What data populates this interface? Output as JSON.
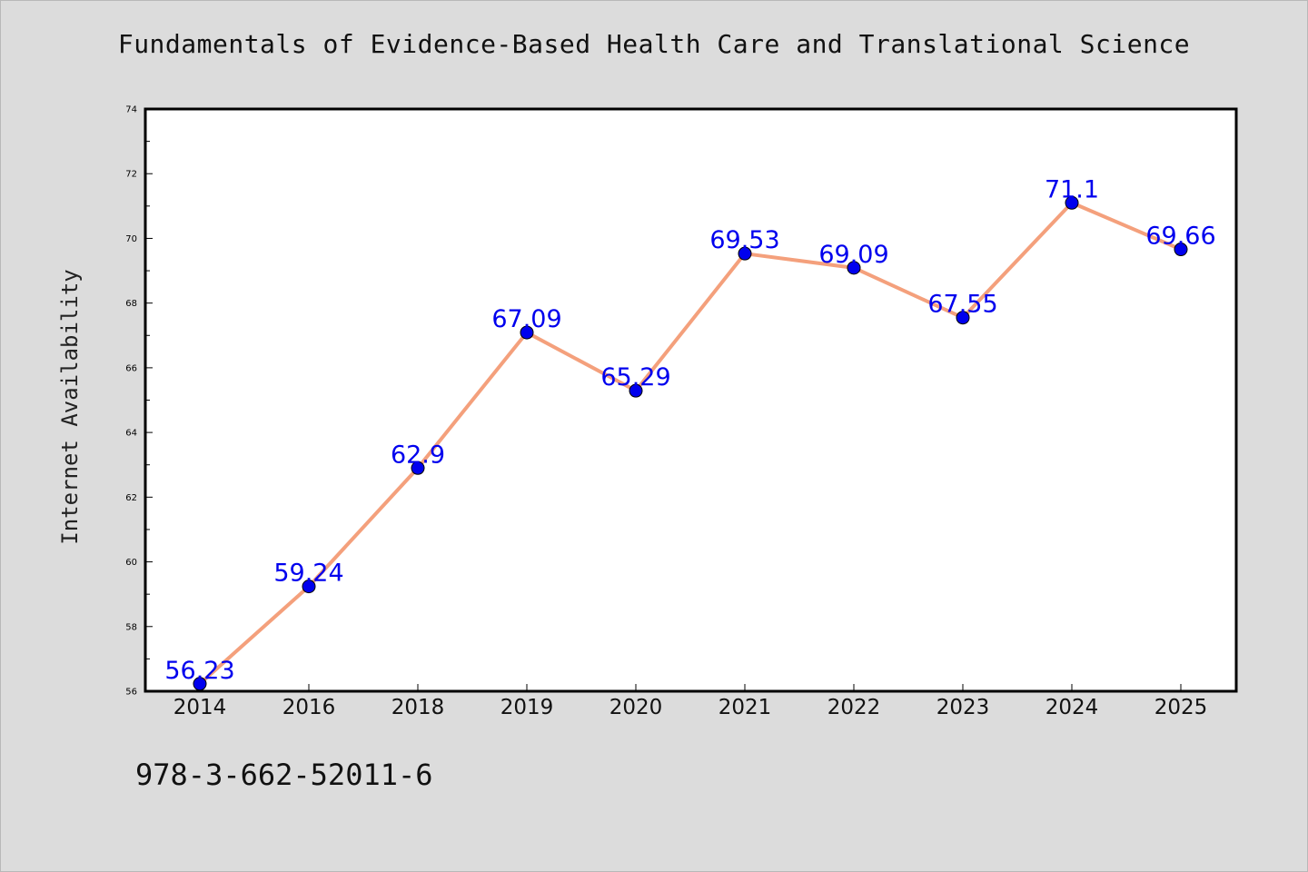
{
  "chart_data": {
    "type": "line",
    "title": "Fundamentals of Evidence-Based Health Care and Translational Science",
    "xlabel": "",
    "ylabel": "Internet Availability",
    "categories": [
      "2014",
      "2016",
      "2018",
      "2019",
      "2020",
      "2021",
      "2022",
      "2023",
      "2024",
      "2025"
    ],
    "series": [
      {
        "values": [
          56.23,
          59.24,
          62.9,
          67.09,
          65.29,
          69.53,
          69.09,
          67.55,
          71.1,
          69.66
        ],
        "labels": [
          "56.23",
          "59.24",
          "62.9",
          "67.09",
          "65.29",
          "69.53",
          "69.09",
          "67.55",
          "71.1",
          "69.66"
        ],
        "line_color": "#f4a07c",
        "marker_color": "#0000ee",
        "label_color": "#0000ee"
      }
    ],
    "ylim": [
      56,
      74
    ],
    "y_ticks": [
      "56",
      "58",
      "60",
      "62",
      "64",
      "66",
      "68",
      "70",
      "72",
      "74"
    ],
    "grid": false,
    "legend": "none"
  },
  "footer": {
    "isbn": "978-3-662-52011-6"
  },
  "colors": {
    "background": "#dcdcdc",
    "plot_background": "#ffffff"
  }
}
